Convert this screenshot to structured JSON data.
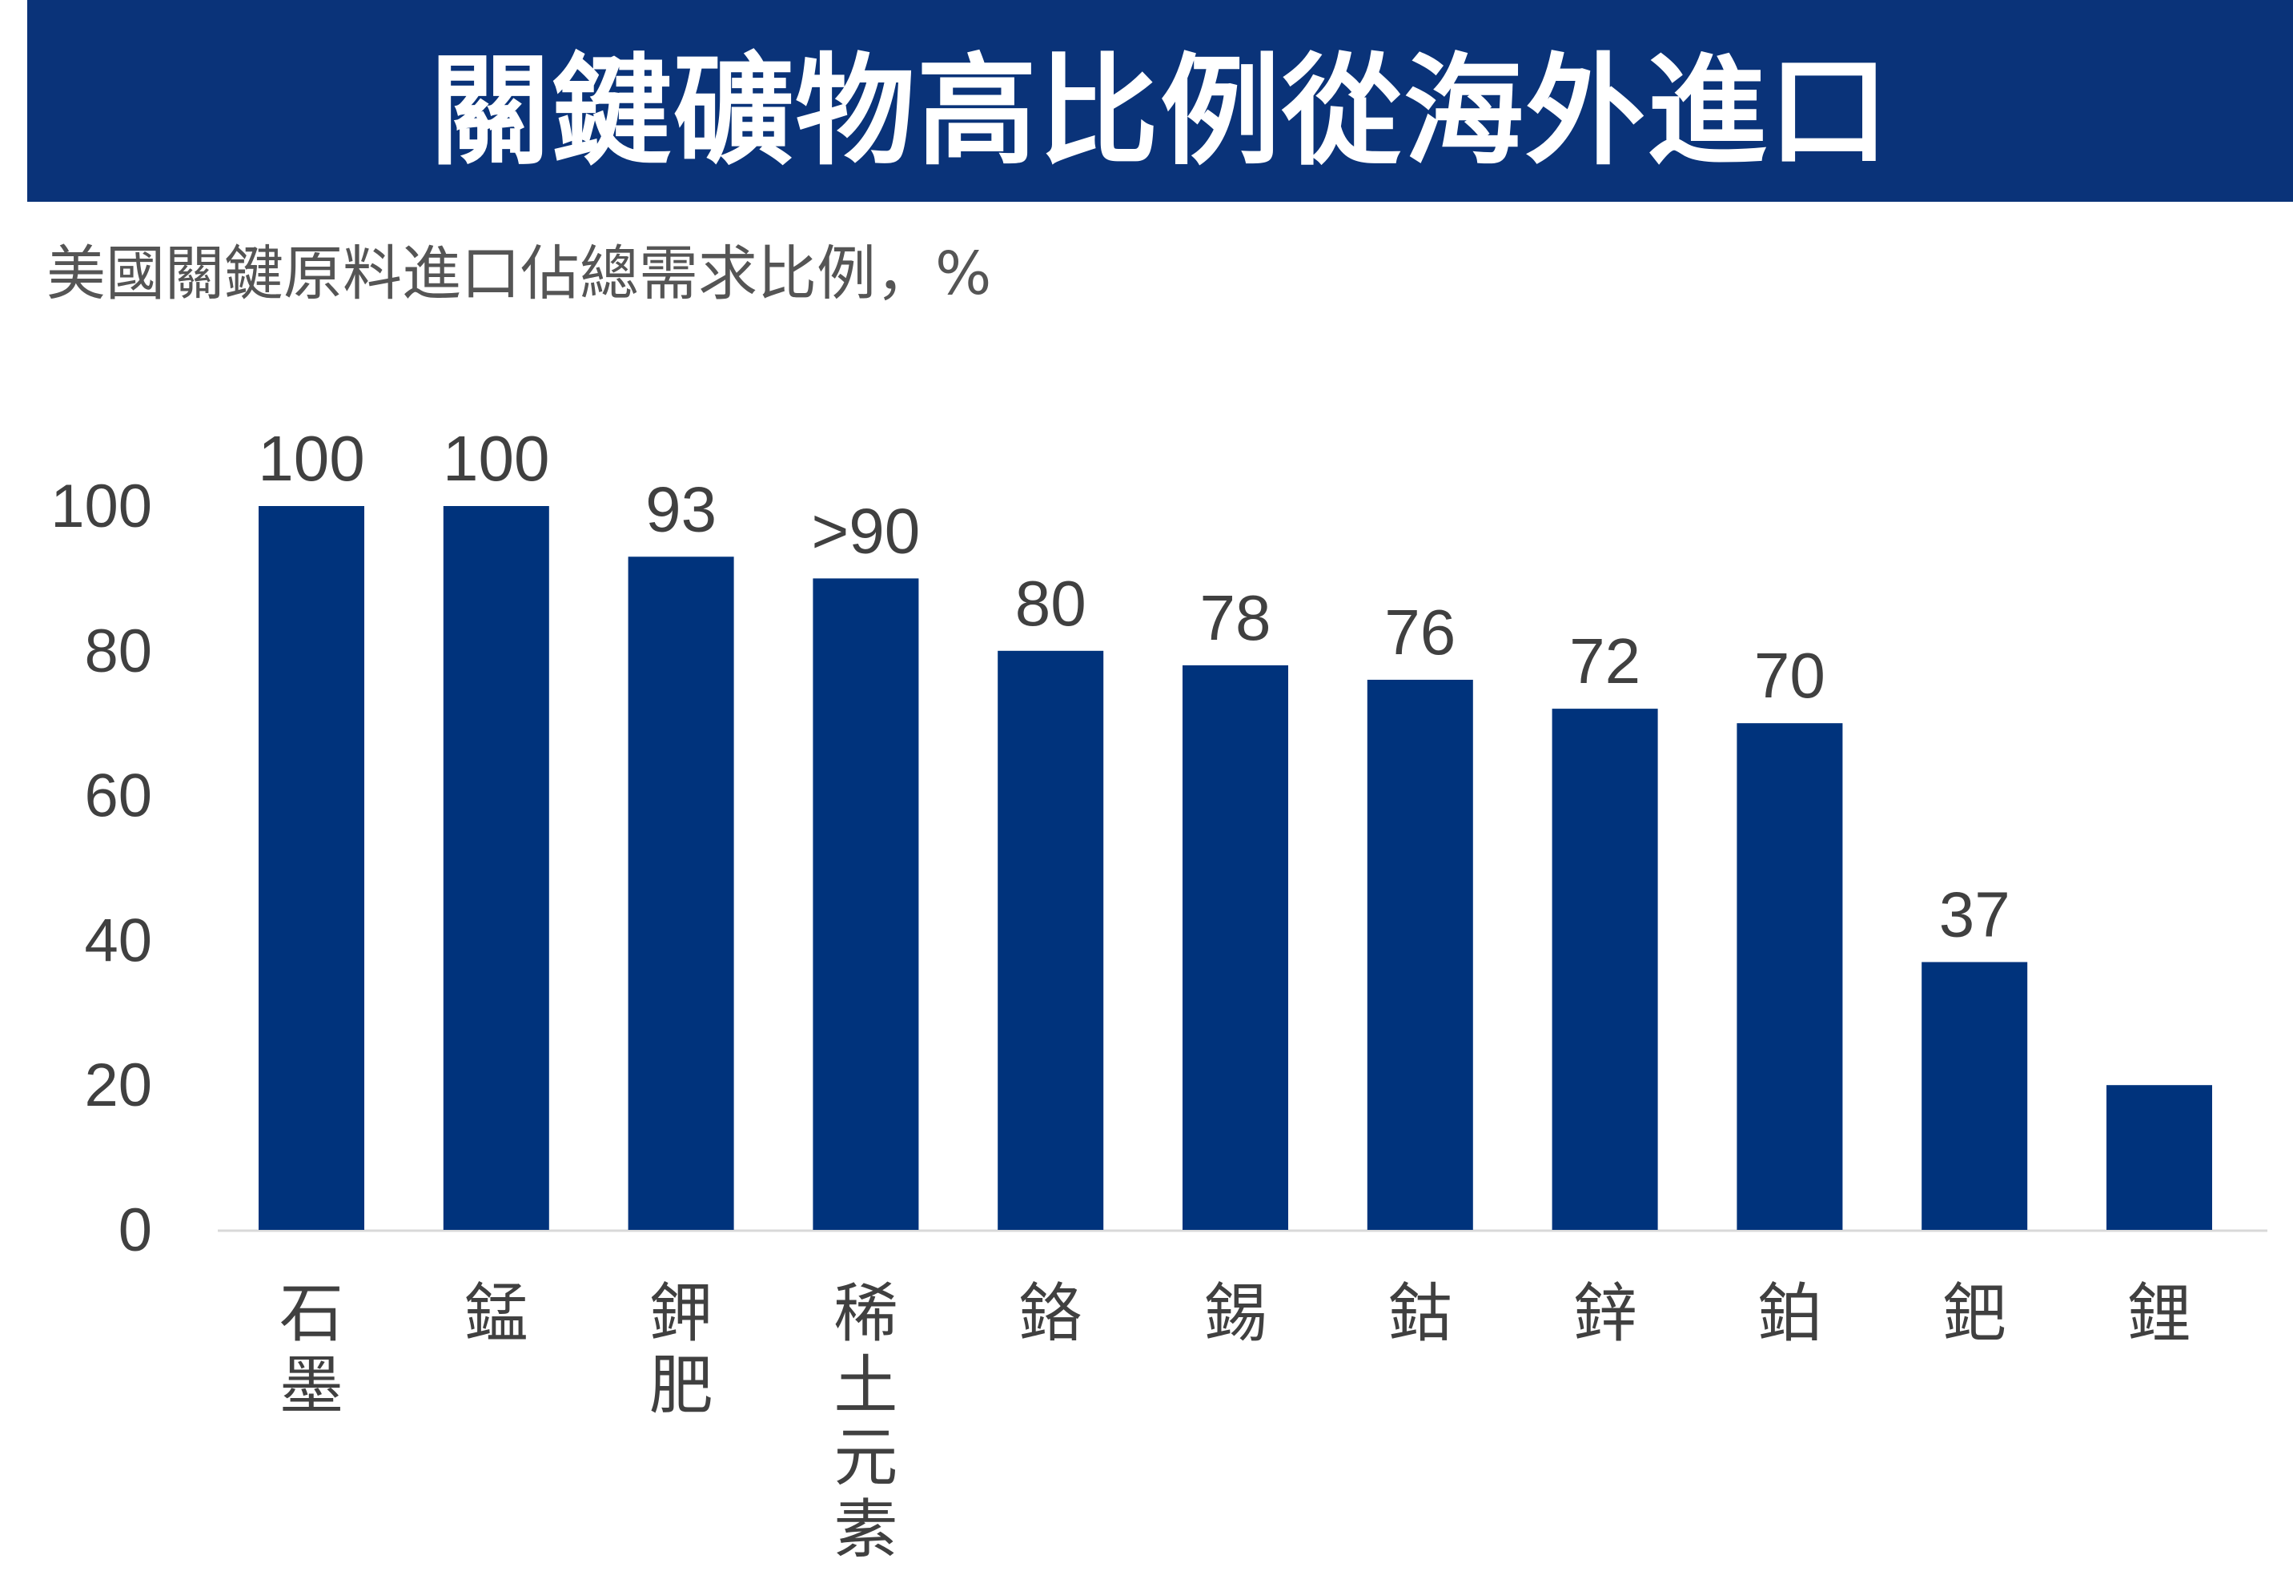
{
  "title": "關鍵礦物高比例從海外進口",
  "subtitle": "美國關鍵原料進口佔總需求比例，%",
  "colors": {
    "bar": "#00337c",
    "title_bg": "#0a3379",
    "text": "#404040",
    "axis": "#d9d9d9"
  },
  "chart_data": {
    "type": "bar",
    "categories": [
      "石墨",
      "錳",
      "鉀肥",
      "稀土元素",
      "鉻",
      "錫",
      "鈷",
      "鋅",
      "鉑",
      "鈀",
      "鋰"
    ],
    "values": [
      100,
      100,
      93,
      90,
      80,
      78,
      76,
      72,
      70,
      37,
      20
    ],
    "data_labels": [
      "100",
      "100",
      "93",
      ">90",
      "80",
      "78",
      "76",
      "72",
      "70",
      "37",
      ""
    ],
    "y_ticks": [
      "0",
      "20",
      "40",
      "60",
      "80",
      "100"
    ],
    "ylim": [
      0,
      100
    ],
    "grid": false
  }
}
